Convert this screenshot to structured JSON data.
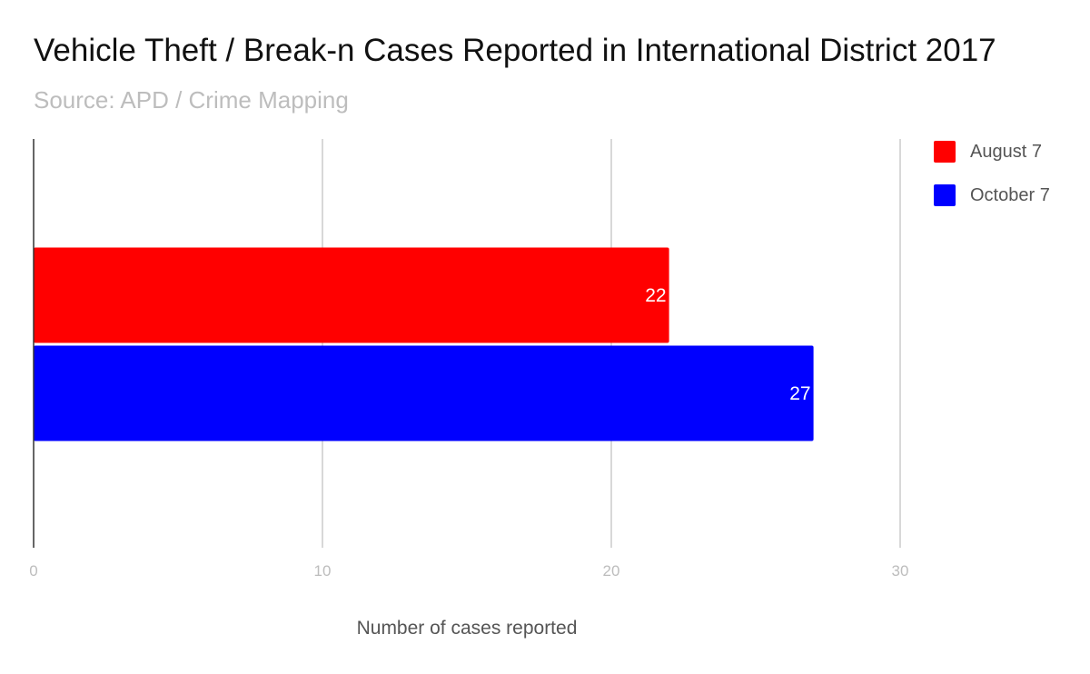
{
  "chart_data": {
    "type": "bar",
    "orientation": "horizontal",
    "title": "Vehicle Theft / Break-n Cases Reported in International District 2017",
    "subtitle": "Source: APD / Crime Mapping",
    "xlabel": "Number of cases reported",
    "ylabel": "",
    "xlim": [
      0,
      30
    ],
    "xticks": [
      0,
      10,
      20,
      30
    ],
    "tick_labels": [
      "0",
      "10",
      "20",
      "30"
    ],
    "categories": [
      ""
    ],
    "series": [
      {
        "name": "August 7",
        "values": [
          22
        ],
        "color": "#ff0000",
        "labels": [
          "22"
        ]
      },
      {
        "name": "October 7",
        "values": [
          27
        ],
        "color": "#0000ff",
        "labels": [
          "27"
        ]
      }
    ],
    "grid": true,
    "legend": "right"
  }
}
